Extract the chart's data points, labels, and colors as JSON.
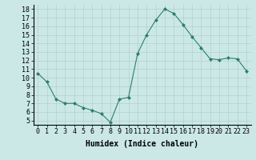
{
  "x": [
    0,
    1,
    2,
    3,
    4,
    5,
    6,
    7,
    8,
    9,
    10,
    11,
    12,
    13,
    14,
    15,
    16,
    17,
    18,
    19,
    20,
    21,
    22,
    23
  ],
  "y": [
    10.5,
    9.5,
    7.5,
    7.0,
    7.0,
    6.5,
    6.2,
    5.8,
    4.8,
    7.5,
    7.7,
    12.8,
    15.0,
    16.7,
    18.0,
    17.5,
    16.2,
    14.8,
    13.5,
    12.2,
    12.1,
    12.3,
    12.2,
    10.8
  ],
  "line_color": "#2e7d6e",
  "marker": "D",
  "marker_size": 2,
  "background_color": "#cbe8e7",
  "grid_color": "#b0d0d0",
  "xlabel": "Humidex (Indice chaleur)",
  "xlabel_fontsize": 7,
  "tick_fontsize": 6,
  "xlim": [
    -0.5,
    23.5
  ],
  "ylim": [
    4.5,
    18.5
  ],
  "yticks": [
    5,
    6,
    7,
    8,
    9,
    10,
    11,
    12,
    13,
    14,
    15,
    16,
    17,
    18
  ],
  "xticks": [
    0,
    1,
    2,
    3,
    4,
    5,
    6,
    7,
    8,
    9,
    10,
    11,
    12,
    13,
    14,
    15,
    16,
    17,
    18,
    19,
    20,
    21,
    22,
    23
  ]
}
